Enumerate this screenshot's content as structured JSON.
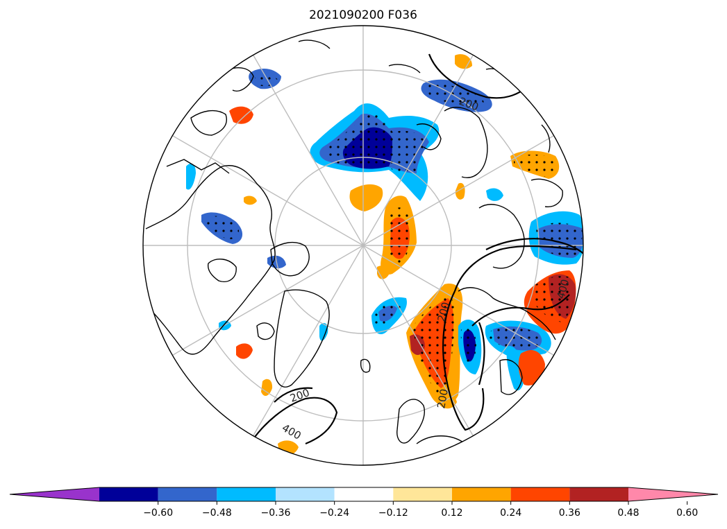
{
  "figure": {
    "title": "2021090200 F036"
  },
  "colorbar": {
    "extend": "both",
    "colors": [
      "#9933cc",
      "#000099",
      "#3366cc",
      "#00bbff",
      "#b3e3ff",
      "#ffffff",
      "#ffe699",
      "#ffa500",
      "#ff4500",
      "#b22222",
      "#ff88aa"
    ],
    "ticks": [
      "−0.60",
      "−0.48",
      "−0.36",
      "−0.24",
      "−0.12",
      "0.12",
      "0.24",
      "0.36",
      "0.48",
      "0.60"
    ]
  },
  "contour_labels": [
    "200",
    "200",
    "200",
    "200",
    "400",
    "400"
  ],
  "map": {
    "projection": "north-polar-stereographic",
    "stippling": "dots over significant anomaly regions"
  }
}
